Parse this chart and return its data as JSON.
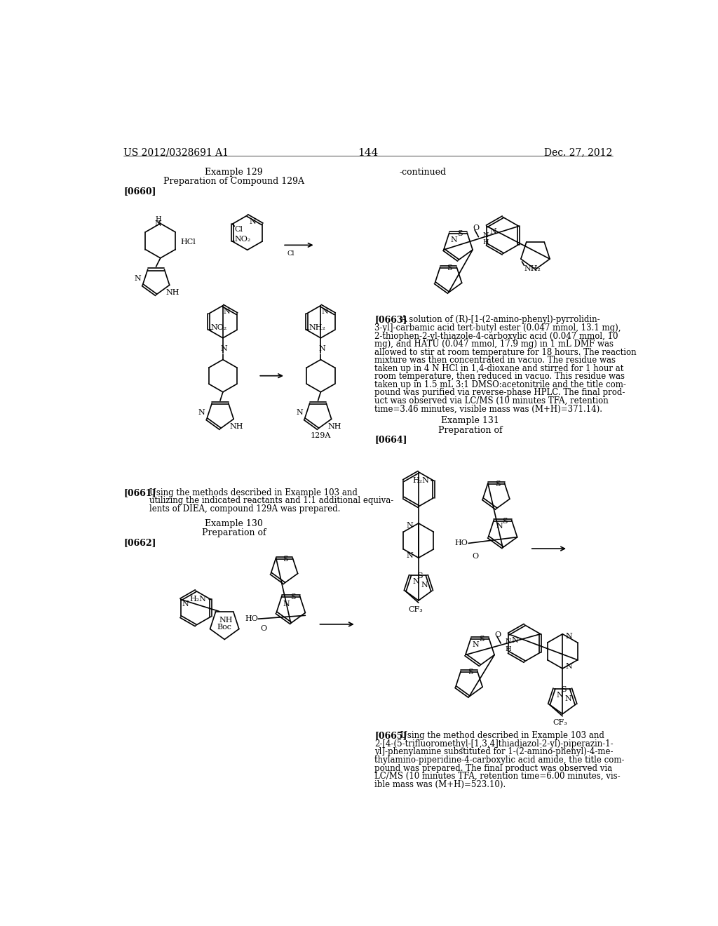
{
  "page_width": 10.24,
  "page_height": 13.2,
  "background_color": "#ffffff",
  "header_left": "US 2012/0328691 A1",
  "header_right": "Dec. 27, 2012",
  "page_number": "144"
}
